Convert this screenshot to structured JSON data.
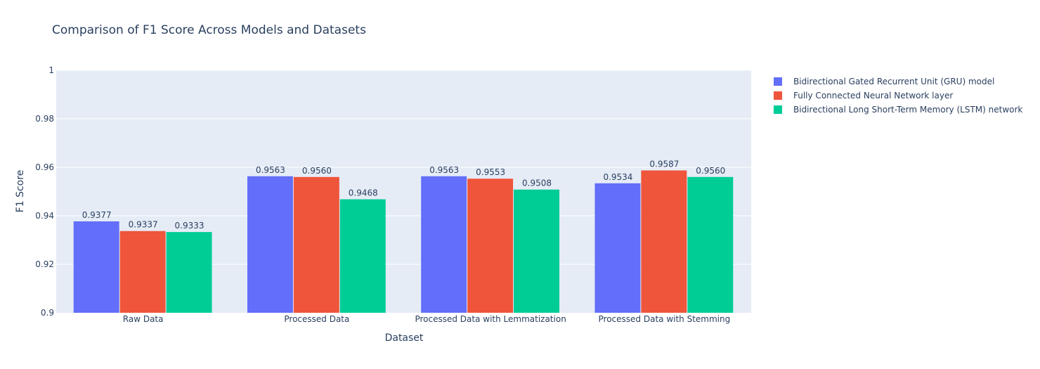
{
  "chart_data": {
    "type": "bar",
    "title": "Comparison of F1 Score Across Models and Datasets",
    "xlabel": "Dataset",
    "ylabel": "F1 Score",
    "ylim": [
      0.9,
      1.0
    ],
    "yticks": [
      0.9,
      0.92,
      0.94,
      0.96,
      0.98,
      1
    ],
    "ytick_labels": [
      "0.9",
      "0.92",
      "0.94",
      "0.96",
      "0.98",
      "1"
    ],
    "grid": true,
    "legend_position": "top-right",
    "categories": [
      "Raw Data",
      "Processed Data",
      "Processed Data with Lemmatization",
      "Processed Data with Stemming"
    ],
    "series": [
      {
        "name": "Bidirectional Gated Recurrent Unit (GRU) model",
        "color": "#636efa",
        "values": [
          0.9377,
          0.9563,
          0.9563,
          0.9534
        ],
        "labels": [
          "0.9377",
          "0.9563",
          "0.9563",
          "0.9534"
        ]
      },
      {
        "name": "Fully Connected Neural Network layer",
        "color": "#ef553b",
        "values": [
          0.9337,
          0.956,
          0.9553,
          0.9587
        ],
        "labels": [
          "0.9337",
          "0.9560",
          "0.9553",
          "0.9587"
        ]
      },
      {
        "name": "Bidirectional Long Short-Term Memory (LSTM) network",
        "color": "#00cc96",
        "values": [
          0.9333,
          0.9468,
          0.9508,
          0.956
        ],
        "labels": [
          "0.9333",
          "0.9468",
          "0.9508",
          "0.9560"
        ]
      }
    ]
  }
}
